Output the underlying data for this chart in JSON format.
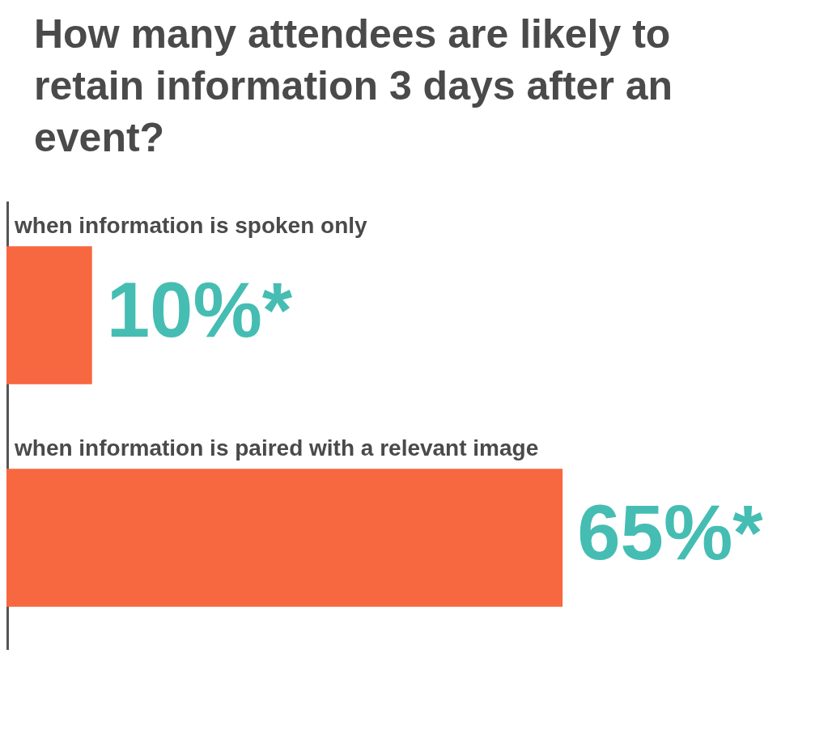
{
  "chart_data": {
    "type": "bar",
    "orientation": "horizontal",
    "title": "How many attendees are likely to retain information 3 days after an event?",
    "categories": [
      "when information is spoken only",
      "when information is paired with a relevant image"
    ],
    "values": [
      10,
      65
    ],
    "color": "#f76841",
    "value_labels": [
      "10%*",
      "65%*"
    ],
    "grid": false,
    "legend": false
  }
}
